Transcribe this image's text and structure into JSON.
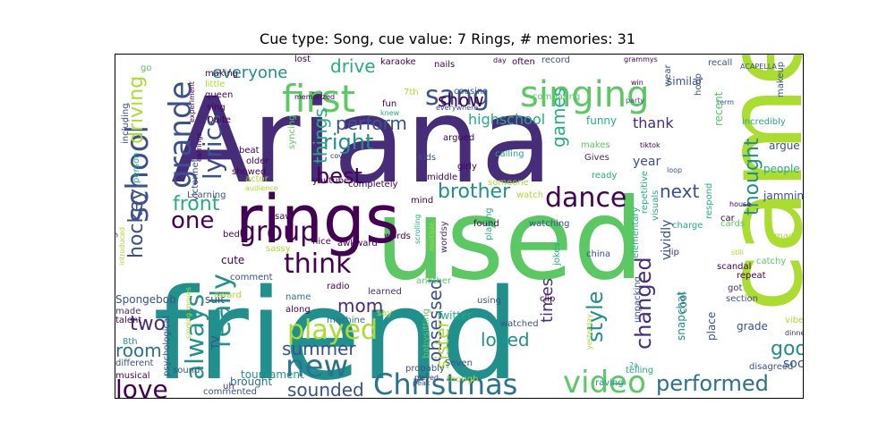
{
  "title": "Cue type: Song, cue value: 7 Rings, # memories: 31",
  "palette": [
    "#440154",
    "#472c7a",
    "#3b518b",
    "#2c718e",
    "#21908d",
    "#27ad81",
    "#5cc863",
    "#aadc32",
    "#fde725"
  ],
  "words": [
    {
      "text": "Ariana",
      "c": "#472c7a"
    },
    {
      "text": "friend",
      "c": "#21908d"
    },
    {
      "text": "used",
      "c": "#5cc863"
    },
    {
      "text": "came",
      "c": "#aadc32"
    },
    {
      "text": "rings",
      "c": "#440154"
    },
    {
      "text": "singing",
      "c": "#5cc863"
    },
    {
      "text": "first",
      "c": "#5cc863"
    },
    {
      "text": "sang",
      "c": "#3b518b"
    },
    {
      "text": "grande",
      "c": "#3b518b"
    },
    {
      "text": "school",
      "c": "#3b518b"
    },
    {
      "text": "lyrics",
      "c": "#3b518b"
    },
    {
      "text": "Christmas",
      "c": "#2c718e"
    },
    {
      "text": "video",
      "c": "#5cc863"
    },
    {
      "text": "dance",
      "c": "#440154"
    },
    {
      "text": "group",
      "c": "#440154"
    },
    {
      "text": "think",
      "c": "#440154"
    },
    {
      "text": "new",
      "c": "#2c718e"
    },
    {
      "text": "played",
      "c": "#aadc32"
    },
    {
      "text": "really",
      "c": "#21908d"
    },
    {
      "text": "always",
      "c": "#21908d"
    },
    {
      "text": "one",
      "c": "#440154"
    },
    {
      "text": "love",
      "c": "#440154"
    },
    {
      "text": "performed",
      "c": "#2c718e"
    },
    {
      "text": "changed",
      "c": "#472c7a"
    },
    {
      "text": "style",
      "c": "#21908d"
    },
    {
      "text": "loved",
      "c": "#21908d"
    },
    {
      "text": "good",
      "c": "#21908d"
    },
    {
      "text": "best",
      "c": "#440154"
    },
    {
      "text": "right",
      "c": "#21908d"
    },
    {
      "text": "brother",
      "c": "#21908d"
    },
    {
      "text": "thought",
      "c": "#21908d"
    },
    {
      "text": "obsessed",
      "c": "#3b518b"
    },
    {
      "text": "sister",
      "c": "#aadc32"
    },
    {
      "text": "mom",
      "c": "#472c7a"
    },
    {
      "text": "summer",
      "c": "#3b518b"
    },
    {
      "text": "sounded",
      "c": "#3b518b"
    },
    {
      "text": "everyone",
      "c": "#21908d"
    },
    {
      "text": "drive",
      "c": "#27ad81"
    },
    {
      "text": "driving",
      "c": "#aadc32"
    },
    {
      "text": "hockey",
      "c": "#3b518b"
    },
    {
      "text": "front",
      "c": "#27ad81"
    },
    {
      "text": "two",
      "c": "#472c7a"
    },
    {
      "text": "room",
      "c": "#2c718e"
    },
    {
      "text": "next",
      "c": "#3b518b"
    },
    {
      "text": "times",
      "c": "#472c7a"
    },
    {
      "text": "show",
      "c": "#440154"
    },
    {
      "text": "perform",
      "c": "#3b518b"
    },
    {
      "text": "things",
      "c": "#27ad81"
    },
    {
      "text": "games",
      "c": "#27ad81"
    },
    {
      "text": "highschool",
      "c": "#27ad81"
    },
    {
      "text": "soccer",
      "c": "#3b518b"
    },
    {
      "text": "thank",
      "c": "#472c7a"
    },
    {
      "text": "year",
      "c": "#3b518b"
    },
    {
      "text": "karaoke",
      "c": "#440154"
    },
    {
      "text": "record",
      "c": "#3b518b"
    },
    {
      "text": "recall",
      "c": "#3b518b"
    },
    {
      "text": "ACAPELLA",
      "c": "#3b518b"
    },
    {
      "text": "grammys",
      "c": "#440154"
    },
    {
      "text": "makeup",
      "c": "#3b518b"
    },
    {
      "text": "incredibly",
      "c": "#27ad81"
    },
    {
      "text": "argue",
      "c": "#3b518b"
    },
    {
      "text": "people",
      "c": "#27ad81"
    },
    {
      "text": "jamming",
      "c": "#3b518b"
    },
    {
      "text": "funny",
      "c": "#27ad81"
    },
    {
      "text": "similar",
      "c": "#3b518b"
    },
    {
      "text": "wear",
      "c": "#3b518b"
    },
    {
      "text": "hoop",
      "c": "#3b518b"
    },
    {
      "text": "term",
      "c": "#3b518b"
    },
    {
      "text": "recent",
      "c": "#5cc863"
    },
    {
      "text": "party",
      "c": "#3b518b"
    },
    {
      "text": "win",
      "c": "#440154"
    },
    {
      "text": "tiktok",
      "c": "#440154"
    },
    {
      "text": "loop",
      "c": "#3b518b"
    },
    {
      "text": "repetitive",
      "c": "#27ad81"
    },
    {
      "text": "makes",
      "c": "#5cc863"
    },
    {
      "text": "Gives",
      "c": "#472c7a"
    },
    {
      "text": "ready",
      "c": "#27ad81"
    },
    {
      "text": "calling",
      "c": "#27ad81"
    },
    {
      "text": "argued",
      "c": "#440154"
    },
    {
      "text": "girly",
      "c": "#440154"
    },
    {
      "text": "kids",
      "c": "#3b518b"
    },
    {
      "text": "cousins",
      "c": "#3b518b"
    },
    {
      "text": "comparing",
      "c": "#5cc863"
    },
    {
      "text": "lost",
      "c": "#440154"
    },
    {
      "text": "nails",
      "c": "#440154"
    },
    {
      "text": "day",
      "c": "#440154"
    },
    {
      "text": "often",
      "c": "#440154"
    },
    {
      "text": "making",
      "c": "#440154"
    },
    {
      "text": "little",
      "c": "#aadc32"
    },
    {
      "text": "queen",
      "c": "#440154"
    },
    {
      "text": "sing",
      "c": "#440154"
    },
    {
      "text": "Quite",
      "c": "#440154"
    },
    {
      "text": "memorized",
      "c": "#440154"
    },
    {
      "text": "fun",
      "c": "#440154"
    },
    {
      "text": "syncing",
      "c": "#5cc863"
    },
    {
      "text": "everywhere",
      "c": "#3b518b"
    },
    {
      "text": "knew",
      "c": "#27ad81"
    },
    {
      "text": "7th",
      "c": "#aadc32"
    },
    {
      "text": "older",
      "c": "#440154"
    },
    {
      "text": "showed",
      "c": "#440154"
    },
    {
      "text": "beat",
      "c": "#440154"
    },
    {
      "text": "covid",
      "c": "#472c7a"
    },
    {
      "text": "actor",
      "c": "#aadc32"
    },
    {
      "text": "audience",
      "c": "#aadc32"
    },
    {
      "text": "Learning",
      "c": "#3b518b"
    },
    {
      "text": "person",
      "c": "#27ad81"
    },
    {
      "text": "youtube",
      "c": "#440154"
    },
    {
      "text": "completely",
      "c": "#440154"
    },
    {
      "text": "middle",
      "c": "#440154"
    },
    {
      "text": "someone",
      "c": "#aadc32"
    },
    {
      "text": "watch",
      "c": "#aadc32"
    },
    {
      "text": "mind",
      "c": "#440154"
    },
    {
      "text": "found",
      "c": "#440154"
    },
    {
      "text": "playing",
      "c": "#27ad81"
    },
    {
      "text": "watching",
      "c": "#3b518b"
    },
    {
      "text": "words",
      "c": "#440154"
    },
    {
      "text": "wordsy",
      "c": "#472c7a"
    },
    {
      "text": "multiple",
      "c": "#aadc32"
    },
    {
      "text": "scrolling",
      "c": "#27ad81"
    },
    {
      "text": "jokes",
      "c": "#27ad81"
    },
    {
      "text": "china",
      "c": "#3b518b"
    },
    {
      "text": "elementary",
      "c": "#27ad81"
    },
    {
      "text": "visuals",
      "c": "#27ad81"
    },
    {
      "text": "respond",
      "c": "#27ad81"
    },
    {
      "text": "house",
      "c": "#440154"
    },
    {
      "text": "car",
      "c": "#440154"
    },
    {
      "text": "charge",
      "c": "#27ad81"
    },
    {
      "text": "lip",
      "c": "#472c7a"
    },
    {
      "text": "cards",
      "c": "#5cc863"
    },
    {
      "text": "mad",
      "c": "#aadc32"
    },
    {
      "text": "still",
      "c": "#aadc32"
    },
    {
      "text": "catchy",
      "c": "#5cc863"
    },
    {
      "text": "scandal",
      "c": "#440154"
    },
    {
      "text": "repeat",
      "c": "#440154"
    },
    {
      "text": "got",
      "c": "#472c7a"
    },
    {
      "text": "section",
      "c": "#3b518b"
    },
    {
      "text": "vividly",
      "c": "#3b518b"
    },
    {
      "text": "vibes",
      "c": "#aadc32"
    },
    {
      "text": "grade",
      "c": "#3b518b"
    },
    {
      "text": "dinner",
      "c": "#472c7a"
    },
    {
      "text": "disagreed",
      "c": "#3b518b"
    },
    {
      "text": "cool",
      "c": "#2c718e"
    },
    {
      "text": "place",
      "c": "#3b518b"
    },
    {
      "text": "snapchat",
      "c": "#21908d"
    },
    {
      "text": "unpacking",
      "c": "#3b518b"
    },
    {
      "text": "telling",
      "c": "#27ad81"
    },
    {
      "text": "raving",
      "c": "#21908d"
    },
    {
      "text": "2a",
      "c": "#27ad81"
    },
    {
      "text": "yesterday",
      "c": "#aadc32"
    },
    {
      "text": "clip",
      "c": "#440154"
    },
    {
      "text": "watched",
      "c": "#3b518b"
    },
    {
      "text": "using",
      "c": "#3b518b"
    },
    {
      "text": "Seven",
      "c": "#3b518b"
    },
    {
      "text": "another",
      "c": "#5cc863"
    },
    {
      "text": "babysitting",
      "c": "#5cc863"
    },
    {
      "text": "Twitter",
      "c": "#27ad81"
    },
    {
      "text": "probably",
      "c": "#3b518b"
    },
    {
      "text": "peak",
      "c": "#3b518b"
    },
    {
      "text": "played",
      "c": "#472c7a"
    },
    {
      "text": "though",
      "c": "#aadc32"
    },
    {
      "text": "awkward",
      "c": "#440154"
    },
    {
      "text": "nice",
      "c": "#440154"
    },
    {
      "text": "saw",
      "c": "#440154"
    },
    {
      "text": "radio",
      "c": "#440154"
    },
    {
      "text": "learned",
      "c": "#472c7a"
    },
    {
      "text": "say",
      "c": "#aadc32"
    },
    {
      "text": "machine",
      "c": "#2c718e"
    },
    {
      "text": "name",
      "c": "#2c718e"
    },
    {
      "text": "along",
      "c": "#440154"
    },
    {
      "text": "sassy",
      "c": "#aadc32"
    },
    {
      "text": "tournament",
      "c": "#21908d"
    },
    {
      "text": "commented",
      "c": "#3b518b"
    },
    {
      "text": "brought",
      "c": "#2c718e"
    },
    {
      "text": "sound",
      "c": "#3b518b"
    },
    {
      "text": "uh",
      "c": "#472c7a"
    },
    {
      "text": "TV",
      "c": "#3b518b"
    },
    {
      "text": "comment",
      "c": "#3b518b"
    },
    {
      "text": "cute",
      "c": "#440154"
    },
    {
      "text": "suit",
      "c": "#3b518b"
    },
    {
      "text": "award",
      "c": "#aadc32"
    },
    {
      "text": "bed",
      "c": "#440154"
    },
    {
      "text": "Spongebob",
      "c": "#3b518b"
    },
    {
      "text": "made",
      "c": "#472c7a"
    },
    {
      "text": "talent",
      "c": "#440154"
    },
    {
      "text": "8th",
      "c": "#21908d"
    },
    {
      "text": "different",
      "c": "#3b518b"
    },
    {
      "text": "musical",
      "c": "#440154"
    },
    {
      "text": "psychological",
      "c": "#3b518b"
    },
    {
      "text": "addicting",
      "c": "#3b518b"
    },
    {
      "text": "introduced",
      "c": "#aadc32"
    },
    {
      "text": "including",
      "c": "#3b518b"
    },
    {
      "text": "go",
      "c": "#5cc863"
    },
    {
      "text": "victorinet",
      "c": "#3b518b"
    },
    {
      "text": "earrings",
      "c": "#440154"
    },
    {
      "text": "experiment",
      "c": "#440154"
    },
    {
      "text": "singing moves",
      "c": "#aadc32"
    }
  ]
}
